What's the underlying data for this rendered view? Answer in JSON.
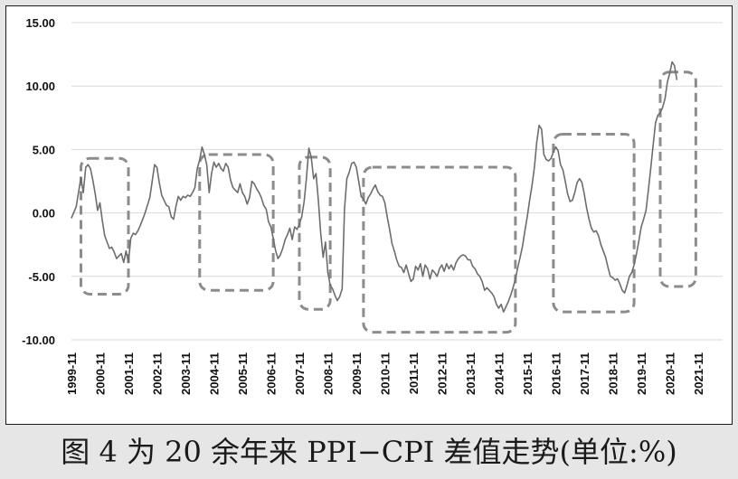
{
  "caption": "图 4 为 20 余年来 PPI−CPI 差值走势(单位:%)",
  "chart_data": {
    "type": "line",
    "series": [
      {
        "values": [
          [
            "1999-11",
            -0.4
          ],
          [
            "2000-01",
            0.5
          ],
          [
            "2000-03",
            2.8
          ],
          [
            "2000-04",
            1.6
          ],
          [
            "2000-05",
            3.6
          ],
          [
            "2000-06",
            3.8
          ],
          [
            "2000-07",
            3.5
          ],
          [
            "2000-08",
            2.6
          ],
          [
            "2000-09",
            1.5
          ],
          [
            "2000-10",
            0.2
          ],
          [
            "2000-11",
            0.8
          ],
          [
            "2000-12",
            -0.6
          ],
          [
            "2001-01",
            -1.8
          ],
          [
            "2001-02",
            -2.3
          ],
          [
            "2001-03",
            -2.8
          ],
          [
            "2001-04",
            -2.7
          ],
          [
            "2001-05",
            -3.1
          ],
          [
            "2001-06",
            -3.6
          ],
          [
            "2001-07",
            -3.4
          ],
          [
            "2001-08",
            -3.2
          ],
          [
            "2001-09",
            -3.9
          ],
          [
            "2001-10",
            -3.0
          ],
          [
            "2001-11",
            -3.9
          ],
          [
            "2001-12",
            -2.0
          ],
          [
            "2002-01",
            -1.6
          ],
          [
            "2002-02",
            -1.7
          ],
          [
            "2002-03",
            -1.4
          ],
          [
            "2002-04",
            -1.0
          ],
          [
            "2002-05",
            -0.5
          ],
          [
            "2002-06",
            0.0
          ],
          [
            "2002-07",
            0.6
          ],
          [
            "2002-08",
            1.2
          ],
          [
            "2002-09",
            2.5
          ],
          [
            "2002-10",
            3.8
          ],
          [
            "2002-11",
            3.6
          ],
          [
            "2002-12",
            2.4
          ],
          [
            "2003-01",
            1.4
          ],
          [
            "2003-02",
            1.0
          ],
          [
            "2003-03",
            0.6
          ],
          [
            "2003-04",
            0.5
          ],
          [
            "2003-05",
            -0.3
          ],
          [
            "2003-06",
            -0.5
          ],
          [
            "2003-07",
            0.5
          ],
          [
            "2003-08",
            1.3
          ],
          [
            "2003-09",
            1.0
          ],
          [
            "2003-10",
            1.3
          ],
          [
            "2003-11",
            1.2
          ],
          [
            "2003-12",
            1.4
          ],
          [
            "2004-01",
            1.3
          ],
          [
            "2004-02",
            1.6
          ],
          [
            "2004-03",
            2.0
          ],
          [
            "2004-04",
            3.5
          ],
          [
            "2004-05",
            4.2
          ],
          [
            "2004-06",
            5.2
          ],
          [
            "2004-07",
            4.6
          ],
          [
            "2004-08",
            3.8
          ],
          [
            "2004-09",
            1.6
          ],
          [
            "2004-10",
            3.1
          ],
          [
            "2004-11",
            4.0
          ],
          [
            "2004-12",
            3.6
          ],
          [
            "2005-01",
            3.9
          ],
          [
            "2005-02",
            3.5
          ],
          [
            "2005-03",
            3.3
          ],
          [
            "2005-04",
            3.9
          ],
          [
            "2005-05",
            3.6
          ],
          [
            "2005-06",
            2.6
          ],
          [
            "2005-07",
            2.0
          ],
          [
            "2005-08",
            1.8
          ],
          [
            "2005-09",
            1.6
          ],
          [
            "2005-10",
            2.3
          ],
          [
            "2005-11",
            1.6
          ],
          [
            "2005-12",
            1.3
          ],
          [
            "2006-01",
            0.7
          ],
          [
            "2006-02",
            1.2
          ],
          [
            "2006-03",
            2.5
          ],
          [
            "2006-04",
            2.3
          ],
          [
            "2006-05",
            1.9
          ],
          [
            "2006-06",
            1.6
          ],
          [
            "2006-07",
            1.2
          ],
          [
            "2006-08",
            0.6
          ],
          [
            "2006-09",
            0.3
          ],
          [
            "2006-10",
            -0.7
          ],
          [
            "2006-11",
            -1.1
          ],
          [
            "2006-12",
            -2.0
          ],
          [
            "2007-01",
            -3.0
          ],
          [
            "2007-02",
            -3.6
          ],
          [
            "2007-03",
            -3.3
          ],
          [
            "2007-04",
            -2.8
          ],
          [
            "2007-05",
            -2.1
          ],
          [
            "2007-06",
            -1.7
          ],
          [
            "2007-07",
            -1.2
          ],
          [
            "2007-08",
            -2.1
          ],
          [
            "2007-09",
            -1.1
          ],
          [
            "2007-10",
            -1.3
          ],
          [
            "2007-11",
            -0.9
          ],
          [
            "2007-12",
            -0.3
          ],
          [
            "2008-01",
            0.9
          ],
          [
            "2008-02",
            2.8
          ],
          [
            "2008-03",
            5.1
          ],
          [
            "2008-04",
            4.4
          ],
          [
            "2008-05",
            2.7
          ],
          [
            "2008-06",
            3.1
          ],
          [
            "2008-07",
            1.0
          ],
          [
            "2008-08",
            -1.6
          ],
          [
            "2008-09",
            -3.5
          ],
          [
            "2008-10",
            -2.3
          ],
          [
            "2008-11",
            -4.7
          ],
          [
            "2008-12",
            -5.7
          ],
          [
            "2009-01",
            -6.0
          ],
          [
            "2009-02",
            -6.5
          ],
          [
            "2009-03",
            -6.9
          ],
          [
            "2009-04",
            -6.6
          ],
          [
            "2009-05",
            -6.0
          ],
          [
            "2009-06",
            0.3
          ],
          [
            "2009-07",
            2.7
          ],
          [
            "2009-08",
            3.2
          ],
          [
            "2009-09",
            3.9
          ],
          [
            "2009-10",
            4.0
          ],
          [
            "2009-11",
            3.6
          ],
          [
            "2009-12",
            2.5
          ],
          [
            "2010-01",
            1.3
          ],
          [
            "2010-02",
            1.1
          ],
          [
            "2010-03",
            0.7
          ],
          [
            "2010-04",
            1.2
          ],
          [
            "2010-05",
            1.5
          ],
          [
            "2010-06",
            1.9
          ],
          [
            "2010-07",
            2.2
          ],
          [
            "2010-08",
            1.7
          ],
          [
            "2010-09",
            1.4
          ],
          [
            "2010-10",
            1.3
          ],
          [
            "2010-11",
            0.8
          ],
          [
            "2010-12",
            -0.3
          ],
          [
            "2011-01",
            -1.3
          ],
          [
            "2011-02",
            -2.4
          ],
          [
            "2011-03",
            -3.0
          ],
          [
            "2011-04",
            -3.7
          ],
          [
            "2011-05",
            -4.2
          ],
          [
            "2011-06",
            -4.3
          ],
          [
            "2011-07",
            -4.7
          ],
          [
            "2011-08",
            -4.1
          ],
          [
            "2011-09",
            -4.8
          ],
          [
            "2011-10",
            -5.4
          ],
          [
            "2011-11",
            -5.2
          ],
          [
            "2011-12",
            -4.2
          ],
          [
            "2012-01",
            -4.5
          ],
          [
            "2012-02",
            -4.0
          ],
          [
            "2012-03",
            -5.0
          ],
          [
            "2012-04",
            -4.1
          ],
          [
            "2012-05",
            -4.4
          ],
          [
            "2012-06",
            -5.2
          ],
          [
            "2012-07",
            -4.5
          ],
          [
            "2012-08",
            -4.7
          ],
          [
            "2012-09",
            -5.0
          ],
          [
            "2012-10",
            -4.4
          ],
          [
            "2012-11",
            -4.1
          ],
          [
            "2012-12",
            -4.6
          ],
          [
            "2013-01",
            -4.0
          ],
          [
            "2013-02",
            -4.4
          ],
          [
            "2013-03",
            -4.1
          ],
          [
            "2013-04",
            -4.5
          ],
          [
            "2013-05",
            -3.9
          ],
          [
            "2013-06",
            -3.6
          ],
          [
            "2013-07",
            -3.4
          ],
          [
            "2013-08",
            -3.3
          ],
          [
            "2013-09",
            -3.4
          ],
          [
            "2013-10",
            -3.7
          ],
          [
            "2013-11",
            -3.7
          ],
          [
            "2013-12",
            -4.2
          ],
          [
            "2014-01",
            -4.4
          ],
          [
            "2014-02",
            -4.8
          ],
          [
            "2014-03",
            -5.0
          ],
          [
            "2014-04",
            -5.4
          ],
          [
            "2014-05",
            -6.1
          ],
          [
            "2014-06",
            -5.9
          ],
          [
            "2014-07",
            -6.1
          ],
          [
            "2014-08",
            -6.3
          ],
          [
            "2014-09",
            -6.6
          ],
          [
            "2014-10",
            -7.2
          ],
          [
            "2014-11",
            -7.5
          ],
          [
            "2014-12",
            -7.2
          ],
          [
            "2015-01",
            -7.8
          ],
          [
            "2015-02",
            -7.4
          ],
          [
            "2015-03",
            -7.0
          ],
          [
            "2015-04",
            -6.5
          ],
          [
            "2015-05",
            -5.9
          ],
          [
            "2015-06",
            -5.2
          ],
          [
            "2015-07",
            -4.3
          ],
          [
            "2015-08",
            -3.5
          ],
          [
            "2015-09",
            -2.6
          ],
          [
            "2015-10",
            -1.4
          ],
          [
            "2015-11",
            -0.3
          ],
          [
            "2015-12",
            1.0
          ],
          [
            "2016-01",
            2.2
          ],
          [
            "2016-02",
            3.6
          ],
          [
            "2016-03",
            5.6
          ],
          [
            "2016-04",
            6.9
          ],
          [
            "2016-05",
            6.6
          ],
          [
            "2016-06",
            4.6
          ],
          [
            "2016-07",
            4.2
          ],
          [
            "2016-08",
            4.1
          ],
          [
            "2016-09",
            4.3
          ],
          [
            "2016-10",
            4.8
          ],
          [
            "2016-11",
            5.2
          ],
          [
            "2016-12",
            4.9
          ],
          [
            "2017-01",
            3.8
          ],
          [
            "2017-02",
            3.4
          ],
          [
            "2017-03",
            2.5
          ],
          [
            "2017-04",
            1.5
          ],
          [
            "2017-05",
            0.9
          ],
          [
            "2017-06",
            1.0
          ],
          [
            "2017-07",
            1.6
          ],
          [
            "2017-08",
            2.4
          ],
          [
            "2017-09",
            2.7
          ],
          [
            "2017-10",
            2.4
          ],
          [
            "2017-11",
            1.5
          ],
          [
            "2017-12",
            0.4
          ],
          [
            "2018-01",
            -0.5
          ],
          [
            "2018-02",
            -1.2
          ],
          [
            "2018-03",
            -1.5
          ],
          [
            "2018-04",
            -1.4
          ],
          [
            "2018-05",
            -1.8
          ],
          [
            "2018-06",
            -2.5
          ],
          [
            "2018-07",
            -3.0
          ],
          [
            "2018-08",
            -3.5
          ],
          [
            "2018-09",
            -4.3
          ],
          [
            "2018-10",
            -5.0
          ],
          [
            "2018-11",
            -5.1
          ],
          [
            "2018-12",
            -5.3
          ],
          [
            "2019-01",
            -5.2
          ],
          [
            "2019-02",
            -5.6
          ],
          [
            "2019-03",
            -6.1
          ],
          [
            "2019-04",
            -6.3
          ],
          [
            "2019-05",
            -5.7
          ],
          [
            "2019-06",
            -5.0
          ],
          [
            "2019-07",
            -4.7
          ],
          [
            "2019-08",
            -4.1
          ],
          [
            "2019-09",
            -3.2
          ],
          [
            "2019-10",
            -2.2
          ],
          [
            "2019-11",
            -1.1
          ],
          [
            "2019-12",
            -0.5
          ],
          [
            "2020-01",
            0.2
          ],
          [
            "2020-02",
            1.8
          ],
          [
            "2020-03",
            3.5
          ],
          [
            "2020-04",
            5.3
          ],
          [
            "2020-05",
            7.1
          ],
          [
            "2020-06",
            7.7
          ],
          [
            "2020-07",
            7.9
          ],
          [
            "2020-08",
            8.3
          ],
          [
            "2020-09",
            9.0
          ],
          [
            "2020-10",
            10.3
          ],
          [
            "2020-11",
            11.0
          ],
          [
            "2020-12",
            11.9
          ],
          [
            "2021-01",
            11.6
          ],
          [
            "2021-02",
            10.5
          ]
        ]
      }
    ],
    "x_tick_labels": [
      "1999-11",
      "2000-11",
      "2001-11",
      "2002-11",
      "2003-11",
      "2004-11",
      "2005-11",
      "2006-11",
      "2007-11",
      "2008-11",
      "2009-11",
      "2010-11",
      "2011-11",
      "2012-11",
      "2013-11",
      "2014-11",
      "2015-11",
      "2016-11",
      "2017-11",
      "2018-11",
      "2019-11",
      "2020-11",
      "2021-11"
    ],
    "y_tick_labels": [
      "15.00",
      "10.00",
      "5.00",
      "0.00",
      "-5.00",
      "-10.00"
    ],
    "ylim": [
      -10,
      15
    ],
    "grid": "horizontal",
    "line_color": "#6d6d6d",
    "box_color": "#8c8c8c"
  }
}
